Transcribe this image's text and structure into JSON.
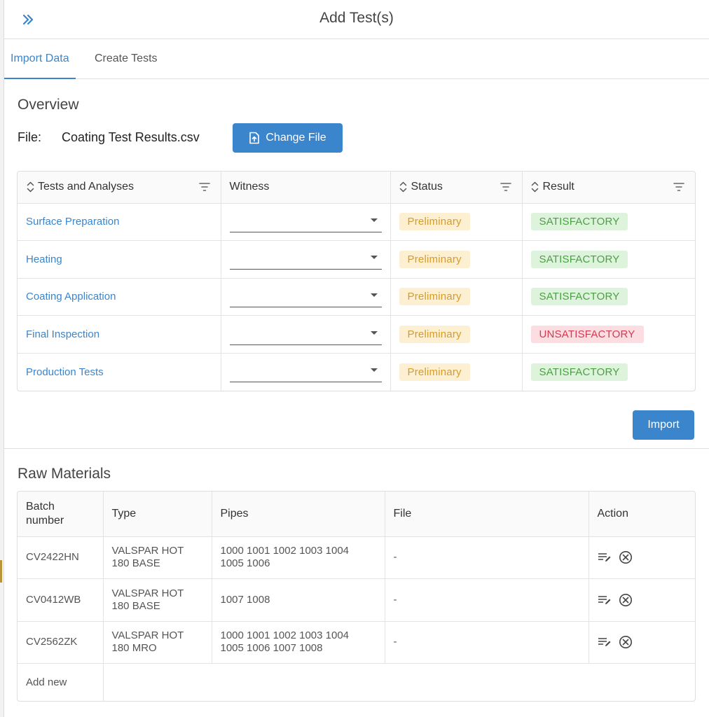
{
  "header": {
    "title": "Add Test(s)",
    "expand_icon": "double-chevron-right-icon"
  },
  "tabs": [
    {
      "label": "Import Data",
      "active": true
    },
    {
      "label": "Create Tests",
      "active": false
    }
  ],
  "overview": {
    "title": "Overview",
    "file_label": "File:",
    "file_name": "Coating Test Results.csv",
    "change_file_label": "Change File",
    "change_file_icon": "file-upload-icon"
  },
  "tests_table": {
    "columns": [
      "Tests and Analyses",
      "Witness",
      "Status",
      "Result"
    ],
    "rows": [
      {
        "test": "Surface Preparation",
        "witness": "",
        "status": "Preliminary",
        "result": "SATISFACTORY"
      },
      {
        "test": "Heating",
        "witness": "",
        "status": "Preliminary",
        "result": "SATISFACTORY"
      },
      {
        "test": "Coating Application",
        "witness": "",
        "status": "Preliminary",
        "result": "SATISFACTORY"
      },
      {
        "test": "Final Inspection",
        "witness": "",
        "status": "Preliminary",
        "result": "UNSATISFACTORY"
      },
      {
        "test": "Production Tests",
        "witness": "",
        "status": "Preliminary",
        "result": "SATISFACTORY"
      }
    ]
  },
  "import_label": "Import",
  "raw_materials": {
    "title": "Raw Materials",
    "columns": [
      "Batch number",
      "Type",
      "Pipes",
      "File",
      "Action"
    ],
    "rows": [
      {
        "batch": "CV2422HN",
        "type": "VALSPAR HOT 180 BASE",
        "pipes": "1000 1001 1002 1003 1004 1005 1006",
        "file": "-"
      },
      {
        "batch": "CV0412WB",
        "type": "VALSPAR HOT 180 BASE",
        "pipes": "1007 1008",
        "file": "-"
      },
      {
        "batch": "CV2562ZK",
        "type": "VALSPAR HOT 180 MRO",
        "pipes": "1000 1001 1002 1003 1004 1005 1006 1007 1008",
        "file": "-"
      }
    ],
    "add_new_label": "Add new"
  },
  "colors": {
    "accent": "#3a85cc",
    "preliminary_bg": "#fcefd2",
    "preliminary_text": "#d49c2b",
    "satisfactory_bg": "#def3dc",
    "satisfactory_text": "#4aa043",
    "unsatisfactory_bg": "#fbdde2",
    "unsatisfactory_text": "#d4394f"
  }
}
